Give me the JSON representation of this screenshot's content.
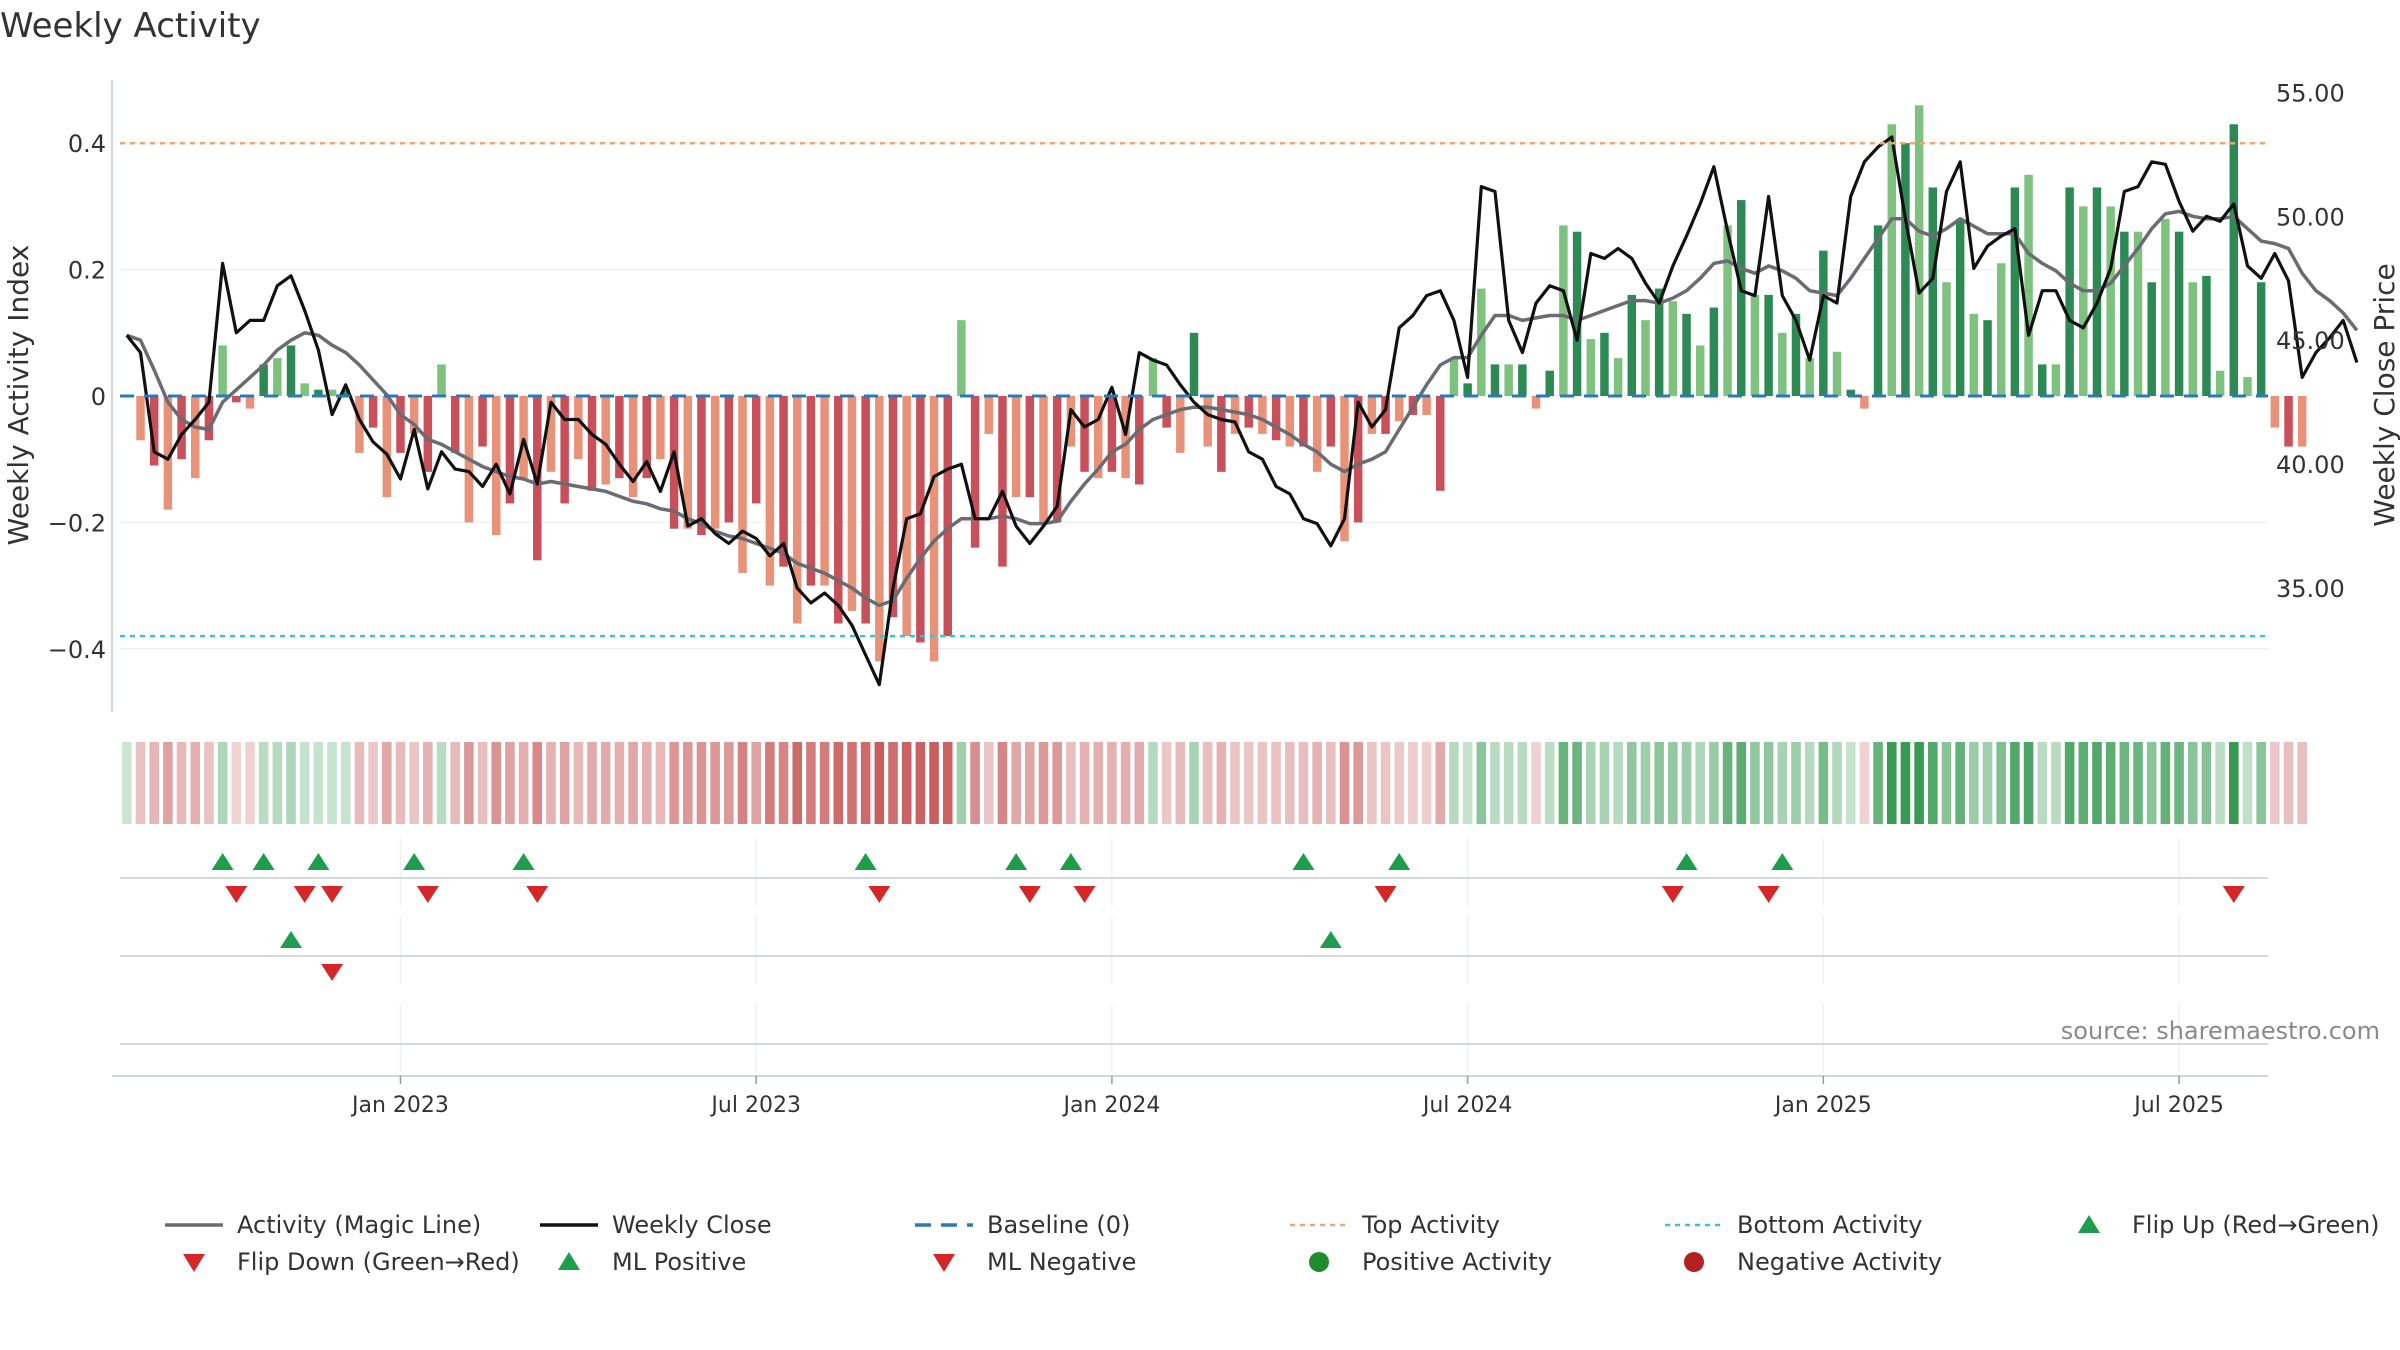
{
  "chart_data": {
    "type": "bar",
    "title": "Weekly Activity",
    "ylabel_left": "Weekly Activity Index",
    "ylabel_right": "Weekly Close Price",
    "ylim_left": [
      -0.5,
      0.5
    ],
    "ylim_right": [
      30.0,
      55.5
    ],
    "yticks_left": [
      {
        "value": 0.4,
        "label": "0.4"
      },
      {
        "value": 0.2,
        "label": "0.2"
      },
      {
        "value": 0,
        "label": "0"
      },
      {
        "value": -0.2,
        "label": "−0.2"
      },
      {
        "value": -0.4,
        "label": "−0.4"
      }
    ],
    "yticks_right": [
      {
        "value": 55,
        "label": "55.00"
      },
      {
        "value": 50,
        "label": "50.00"
      },
      {
        "value": 45,
        "label": "45.00"
      },
      {
        "value": 40,
        "label": "40.00"
      },
      {
        "value": 35,
        "label": "35.00"
      }
    ],
    "xticks": [
      {
        "week": 20,
        "label": "Jan 2023"
      },
      {
        "week": 46,
        "label": "Jul 2023"
      },
      {
        "week": 72,
        "label": "Jan 2024"
      },
      {
        "week": 98,
        "label": "Jul 2024"
      },
      {
        "week": 124,
        "label": "Jan 2025"
      },
      {
        "week": 150,
        "label": "Jul 2025"
      }
    ],
    "weeks_total": 157,
    "top_activity": 0.4,
    "bottom_activity": -0.38,
    "activity": [
      0,
      -0.07,
      -0.11,
      -0.18,
      -0.1,
      -0.13,
      -0.07,
      0.08,
      -0.01,
      -0.02,
      0.05,
      0.06,
      0.08,
      0.02,
      0.01,
      0.01,
      0.01,
      -0.09,
      -0.05,
      -0.16,
      -0.09,
      -0.06,
      -0.12,
      0.05,
      -0.09,
      -0.2,
      -0.08,
      -0.22,
      -0.17,
      -0.13,
      -0.26,
      -0.12,
      -0.17,
      -0.1,
      -0.15,
      -0.14,
      -0.13,
      -0.16,
      -0.13,
      -0.1,
      -0.21,
      -0.21,
      -0.22,
      -0.21,
      -0.2,
      -0.28,
      -0.17,
      -0.3,
      -0.27,
      -0.36,
      -0.3,
      -0.3,
      -0.36,
      -0.34,
      -0.36,
      -0.42,
      -0.35,
      -0.38,
      -0.39,
      -0.42,
      -0.38,
      0.12,
      -0.24,
      -0.06,
      -0.27,
      -0.16,
      -0.16,
      -0.2,
      -0.2,
      -0.08,
      -0.12,
      -0.13,
      -0.12,
      -0.13,
      -0.14,
      0.06,
      -0.05,
      -0.09,
      0.1,
      -0.08,
      -0.12,
      -0.06,
      -0.05,
      -0.06,
      -0.07,
      -0.08,
      -0.08,
      -0.12,
      -0.08,
      -0.23,
      -0.2,
      -0.06,
      -0.06,
      -0.04,
      -0.03,
      -0.03,
      -0.15,
      0.06,
      0.02,
      0.17,
      0.05,
      0.05,
      0.05,
      -0.02,
      0.04,
      0.27,
      0.26,
      0.09,
      0.1,
      0.06,
      0.16,
      0.12,
      0.17,
      0.15,
      0.13,
      0.08,
      0.14,
      0.27,
      0.31,
      0.16,
      0.16,
      0.1,
      0.13,
      0.06,
      0.23,
      0.07,
      0.01,
      -0.02,
      0.27,
      0.43,
      0.4,
      0.46,
      0.33,
      0.18,
      0.28,
      0.13,
      0.12,
      0.21,
      0.33,
      0.35,
      0.05,
      0.05,
      0.33,
      0.3,
      0.33,
      0.3,
      0.26,
      0.26,
      0.18,
      0.28,
      0.26,
      0.18,
      0.19,
      0.04,
      0.43,
      0.03,
      0.18,
      -0.05,
      -0.08,
      -0.08
    ],
    "weekly_close": [
      45.2,
      44.5,
      40.5,
      40.2,
      41.2,
      41.8,
      42.5,
      48.1,
      45.3,
      45.8,
      45.8,
      47.2,
      47.6,
      46.2,
      44.6,
      42.0,
      43.2,
      41.8,
      40.9,
      40.4,
      39.4,
      41.4,
      39.0,
      40.5,
      39.8,
      39.7,
      39.1,
      40.0,
      38.8,
      41.0,
      39.2,
      42.5,
      41.8,
      41.8,
      41.2,
      40.8,
      40.0,
      39.3,
      40.1,
      38.9,
      40.5,
      37.5,
      37.8,
      37.2,
      36.8,
      37.3,
      37.0,
      36.3,
      36.8,
      35.0,
      34.4,
      34.8,
      34.3,
      33.5,
      32.3,
      31.1,
      35.0,
      37.8,
      38.0,
      39.5,
      39.8,
      40.0,
      37.8,
      37.8,
      38.9,
      37.5,
      36.8,
      37.5,
      38.3,
      42.2,
      41.5,
      41.8,
      43.1,
      41.2,
      44.5,
      44.2,
      44.0,
      43.2,
      42.5,
      42.0,
      41.8,
      41.7,
      40.5,
      40.2,
      39.1,
      38.8,
      37.8,
      37.6,
      36.7,
      37.8,
      42.5,
      41.5,
      42.2,
      45.5,
      46.0,
      46.8,
      47.0,
      45.8,
      43.5,
      51.2,
      51.0,
      45.8,
      44.5,
      46.5,
      47.2,
      47.0,
      45.0,
      48.5,
      48.3,
      48.7,
      48.3,
      47.3,
      46.5,
      48.0,
      49.2,
      50.5,
      52.0,
      49.4,
      47.0,
      46.8,
      50.8,
      46.8,
      45.8,
      44.2,
      46.8,
      46.5,
      50.8,
      52.2,
      52.8,
      53.2,
      49.9,
      46.9,
      47.5,
      51.0,
      52.2,
      47.9,
      48.8,
      49.2,
      49.5,
      45.2,
      47.0,
      47.0,
      45.8,
      45.5,
      46.5,
      47.9,
      51.0,
      51.2,
      52.2,
      52.1,
      50.6,
      49.4,
      50.0,
      49.8,
      50.5,
      48.0,
      47.5,
      48.5,
      47.4,
      43.5,
      44.5,
      45.1,
      45.8,
      44.1
    ],
    "magic_line": [
      45.2,
      45.0,
      43.8,
      42.5,
      41.8,
      41.5,
      41.4,
      42.5,
      43.0,
      43.5,
      44.0,
      44.6,
      45.0,
      45.3,
      45.2,
      44.8,
      44.5,
      44.0,
      43.4,
      42.8,
      42.0,
      41.6,
      41.0,
      40.8,
      40.5,
      40.2,
      39.9,
      39.7,
      39.5,
      39.4,
      39.2,
      39.3,
      39.2,
      39.1,
      39.0,
      38.9,
      38.7,
      38.5,
      38.4,
      38.2,
      38.1,
      37.8,
      37.6,
      37.3,
      37.1,
      37.0,
      36.8,
      36.6,
      36.4,
      36.0,
      35.8,
      35.6,
      35.3,
      35.0,
      34.6,
      34.3,
      34.5,
      35.4,
      36.2,
      36.9,
      37.4,
      37.8,
      37.8,
      37.8,
      37.9,
      37.8,
      37.6,
      37.6,
      37.7,
      38.5,
      39.2,
      39.8,
      40.5,
      40.8,
      41.4,
      41.8,
      42.0,
      42.2,
      42.3,
      42.3,
      42.2,
      42.1,
      42.0,
      41.8,
      41.5,
      41.2,
      40.8,
      40.5,
      40.0,
      39.7,
      40.0,
      40.2,
      40.5,
      41.4,
      42.3,
      43.2,
      44.0,
      44.3,
      44.3,
      45.2,
      46.0,
      46.0,
      45.8,
      45.9,
      46.0,
      46.0,
      45.8,
      46.0,
      46.2,
      46.4,
      46.6,
      46.6,
      46.5,
      46.7,
      47.0,
      47.5,
      48.1,
      48.2,
      47.9,
      47.7,
      48.0,
      47.8,
      47.5,
      47.0,
      46.9,
      46.8,
      47.5,
      48.3,
      49.1,
      49.9,
      49.9,
      49.4,
      49.2,
      49.5,
      49.9,
      49.6,
      49.3,
      49.3,
      49.3,
      48.5,
      48.1,
      47.8,
      47.3,
      47.0,
      47.0,
      47.3,
      48.0,
      48.7,
      49.5,
      50.1,
      50.2,
      50.0,
      49.9,
      49.9,
      50.0,
      49.5,
      49.0,
      48.9,
      48.7,
      47.7,
      47.0,
      46.6,
      46.1,
      45.4
    ],
    "heat_strip": "activity",
    "flip_up_weeks": [
      7,
      10,
      14,
      21,
      29,
      54,
      65,
      69,
      86,
      93,
      114,
      121
    ],
    "flip_down_weeks": [
      8,
      13,
      15,
      22,
      30,
      55,
      66,
      70,
      92,
      113,
      120,
      154
    ],
    "ml_positive_weeks": [
      12,
      88
    ],
    "ml_negative_weeks": [
      15
    ],
    "legend": [
      {
        "label": "Activity (Magic Line)",
        "marker": "line",
        "color": "#6b6b72"
      },
      {
        "label": "Weekly Close",
        "marker": "line",
        "color": "#111111"
      },
      {
        "label": "Baseline (0)",
        "marker": "dash",
        "color": "#2a7ab8"
      },
      {
        "label": "Top Activity",
        "marker": "dot-line",
        "color": "#e8a878"
      },
      {
        "label": "Bottom Activity",
        "marker": "dot-line",
        "color": "#35c3d6"
      },
      {
        "label": "Flip Up (Red→Green)",
        "marker": "triangle-up",
        "color": "#1e9e4c"
      },
      {
        "label": "Flip Down (Green→Red)",
        "marker": "triangle-down",
        "color": "#d62728"
      },
      {
        "label": "ML Positive",
        "marker": "triangle-up",
        "color": "#1e9e4c"
      },
      {
        "label": "ML Negative",
        "marker": "triangle-down",
        "color": "#d62728"
      },
      {
        "label": "Positive Activity",
        "marker": "circle",
        "color": "#1f8c2c"
      },
      {
        "label": "Negative Activity",
        "marker": "circle",
        "color": "#b22222"
      }
    ],
    "legend_placement": "bottom",
    "source": "source: sharemaestro.com"
  }
}
